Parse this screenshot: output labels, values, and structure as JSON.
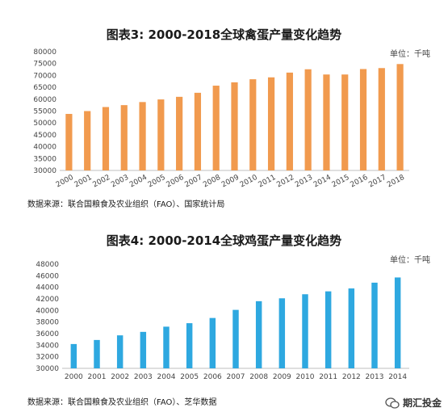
{
  "chart_data": [
    {
      "type": "bar",
      "title": "图表3: 2000-2018全球禽蛋产量变化趋势",
      "unit": "单位：千吨",
      "source": "数据来源：联合国粮食及农业组织（FAO）、国家统计局",
      "categories": [
        "2000",
        "2001",
        "2002",
        "2003",
        "2004",
        "2005",
        "2006",
        "2007",
        "2008",
        "2009",
        "2010",
        "2011",
        "2012",
        "2013",
        "2014",
        "2015",
        "2016",
        "2017",
        "2018"
      ],
      "values": [
        53800,
        55000,
        56700,
        57500,
        58800,
        59900,
        61000,
        62700,
        65700,
        67100,
        68400,
        69200,
        71200,
        72600,
        70400,
        70400,
        72700,
        73100,
        74800
      ],
      "ylim": [
        30000,
        80000
      ],
      "yticks": [
        "30000",
        "35000",
        "40000",
        "45000",
        "50000",
        "55000",
        "60000",
        "65000",
        "70000",
        "75000",
        "80000"
      ],
      "color": "#F19A4E",
      "xlabel": "",
      "ylabel": ""
    },
    {
      "type": "bar",
      "title": "图表4: 2000-2014全球鸡蛋产量变化趋势",
      "unit": "单位：千吨",
      "source": "数据来源：联合国粮食及农业组织（FAO）、芝华数据",
      "categories": [
        "2000",
        "2001",
        "2002",
        "2003",
        "2004",
        "2005",
        "2006",
        "2007",
        "2008",
        "2009",
        "2010",
        "2011",
        "2012",
        "2013",
        "2014"
      ],
      "values": [
        34200,
        34900,
        35700,
        36300,
        37200,
        37800,
        38700,
        40100,
        41600,
        42100,
        42800,
        43300,
        43800,
        44800,
        45700
      ],
      "ylim": [
        30000,
        48000
      ],
      "yticks": [
        "30000",
        "32000",
        "34000",
        "36000",
        "38000",
        "40000",
        "42000",
        "44000",
        "46000",
        "48000"
      ],
      "color": "#2EA8E0",
      "xlabel": "",
      "ylabel": ""
    }
  ],
  "watermark": {
    "text": "期汇投金",
    "icon": "wechat-icon"
  }
}
